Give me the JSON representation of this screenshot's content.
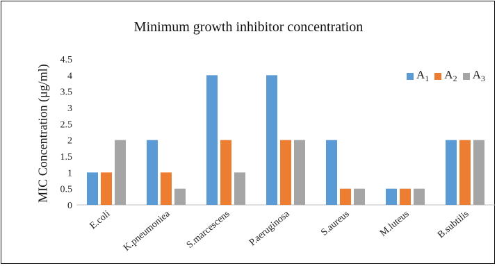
{
  "chart_data": {
    "type": "bar",
    "title": "Minimum growth inhibitor concentration",
    "ylabel": "MIC Concentration (μg/ml)",
    "xlabel": "",
    "ylim": [
      0,
      4.5
    ],
    "yticks": [
      0,
      0.5,
      1,
      1.5,
      2,
      2.5,
      3,
      3.5,
      4,
      4.5
    ],
    "ytick_labels": [
      "0",
      "0.5",
      "1",
      "1.5",
      "2",
      "2.5",
      "3",
      "3.5",
      "4",
      "4.5"
    ],
    "grid": false,
    "legend_position": "top-right",
    "categories": [
      "E.coli",
      "K.pneumoniea",
      "S.marcescens",
      "P.aeruginosa",
      "S.aureus",
      "M.luteus",
      "B.subtilis"
    ],
    "series": [
      {
        "name": "A",
        "subscript": "1",
        "color": "#5b9bd5",
        "values": [
          1,
          2,
          4,
          4,
          2,
          0.5,
          2
        ]
      },
      {
        "name": "A",
        "subscript": "2",
        "color": "#ed7d31",
        "values": [
          1,
          1,
          2,
          2,
          0.5,
          0.5,
          2
        ]
      },
      {
        "name": "A",
        "subscript": "3",
        "color": "#a5a5a5",
        "values": [
          2,
          0.5,
          1,
          2,
          0.5,
          0.5,
          2
        ]
      }
    ]
  }
}
